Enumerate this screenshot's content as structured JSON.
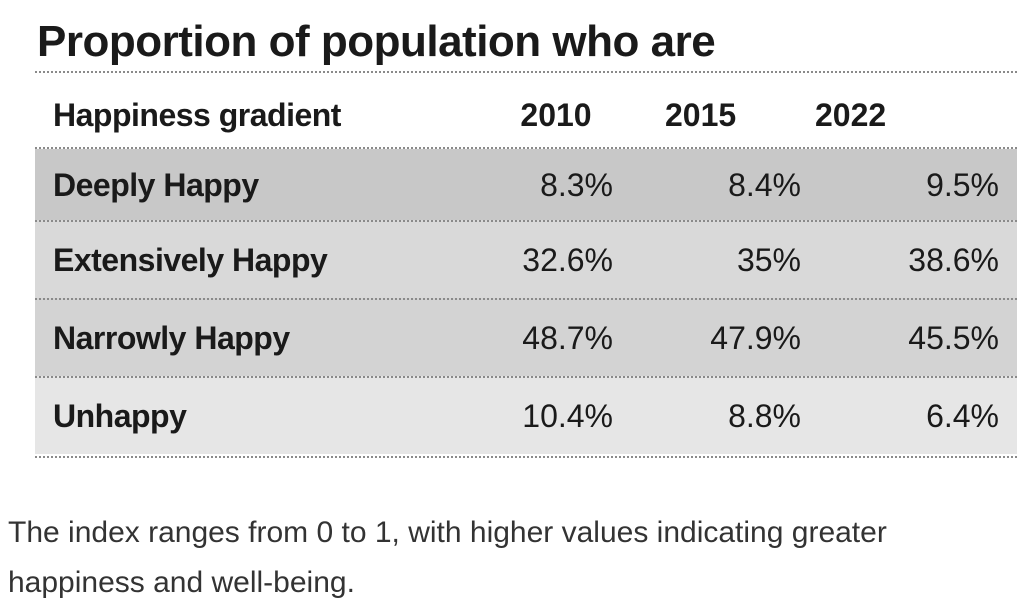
{
  "chart_data": {
    "type": "table",
    "title": "Proportion of population who are",
    "columns": [
      "Happiness gradient",
      "2010",
      "2015",
      "2022"
    ],
    "rows": [
      {
        "label": "Deeply Happy",
        "values": [
          "8.3%",
          "8.4%",
          "9.5%"
        ]
      },
      {
        "label": "Extensively Happy",
        "values": [
          "32.6%",
          "35%",
          "38.6%"
        ]
      },
      {
        "label": "Narrowly Happy",
        "values": [
          "48.7%",
          "47.9%",
          "45.5%"
        ]
      },
      {
        "label": "Unhappy",
        "values": [
          "10.4%",
          "8.8%",
          "6.4%"
        ]
      }
    ],
    "row_colors": [
      "#c8c8c8",
      "#d9d9d9",
      "#d3d3d3",
      "#e6e6e6"
    ]
  },
  "caption": "The index ranges from 0 to 1, with higher values indicating greater happiness and well-being."
}
